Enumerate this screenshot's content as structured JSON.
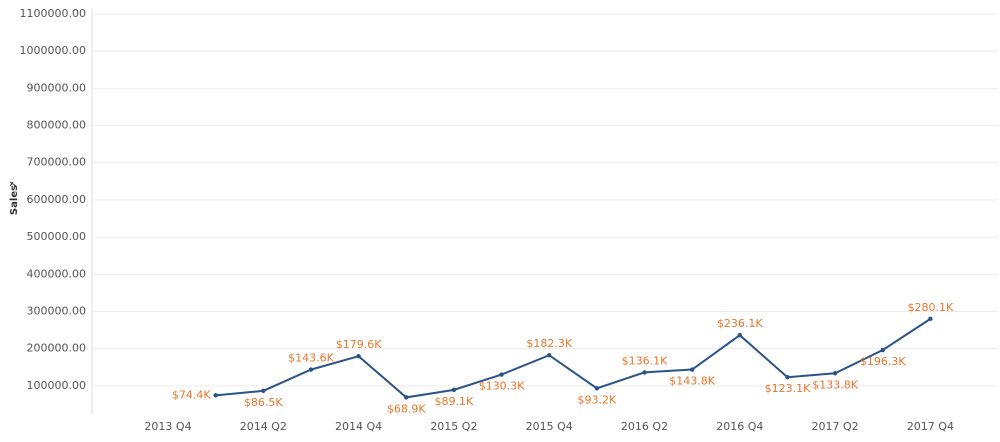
{
  "chart_data": {
    "type": "line",
    "y_label": "Sales",
    "categories": [
      "2013 Q4",
      null,
      "2014 Q2",
      null,
      "2014 Q4",
      null,
      "2015 Q2",
      null,
      "2015 Q4",
      null,
      "2016 Q2",
      null,
      "2016 Q4",
      null,
      "2017 Q2",
      null,
      "2017 Q4"
    ],
    "series": [
      {
        "name": "Sales",
        "color": "#2a5388",
        "values": [
          null,
          74400,
          86500,
          143600,
          179600,
          68900,
          89100,
          130300,
          182300,
          93200,
          136100,
          143800,
          236100,
          123100,
          133800,
          196300,
          280100
        ],
        "value_labels": [
          null,
          "$74.4K",
          "$86.5K",
          "$143.6K",
          "$179.6K",
          "$68.9K",
          "$89.1K",
          "$130.3K",
          "$182.3K",
          "$93.2K",
          "$136.1K",
          "$143.8K",
          "$236.1K",
          "$123.1K",
          "$133.8K",
          "$196.3K",
          "$280.1K"
        ]
      }
    ],
    "label_color": "#e8762b",
    "ylim": [
      0,
      1100000
    ],
    "yticks": [
      {
        "value": 100000,
        "label": "100000.00"
      },
      {
        "value": 200000,
        "label": "200000.00"
      },
      {
        "value": 300000,
        "label": "300000.00"
      },
      {
        "value": 400000,
        "label": "400000.00"
      },
      {
        "value": 500000,
        "label": "500000.00"
      },
      {
        "value": 600000,
        "label": "600000.00"
      },
      {
        "value": 700000,
        "label": "700000.00"
      },
      {
        "value": 800000,
        "label": "800000.00"
      },
      {
        "value": 900000,
        "label": "900000.00"
      },
      {
        "value": 1000000,
        "label": "1000000.00"
      },
      {
        "value": 1100000,
        "label": "1100000.00"
      }
    ],
    "grid": true
  }
}
